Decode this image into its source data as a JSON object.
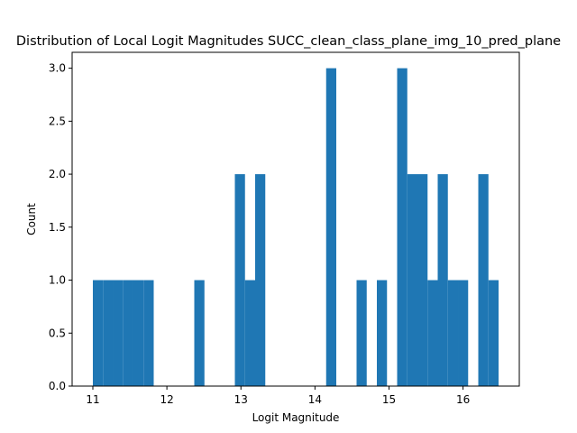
{
  "chart_data": {
    "type": "bar",
    "title": "Distribution of Local Logit Magnitudes SUCC_clean_class_plane_img_10_pred_plane",
    "xlabel": "Logit Magnitude",
    "ylabel": "Count",
    "xlim": [
      10.72,
      16.76
    ],
    "ylim": [
      0,
      3.15
    ],
    "grid": false,
    "color": "#1f77b4",
    "bin_width": 0.137,
    "bins": [
      {
        "x0": 11.0,
        "count": 1
      },
      {
        "x0": 11.137,
        "count": 1
      },
      {
        "x0": 11.274,
        "count": 1
      },
      {
        "x0": 11.411,
        "count": 1
      },
      {
        "x0": 11.548,
        "count": 1
      },
      {
        "x0": 11.685,
        "count": 1
      },
      {
        "x0": 12.37,
        "count": 1
      },
      {
        "x0": 12.918,
        "count": 2
      },
      {
        "x0": 13.055,
        "count": 1
      },
      {
        "x0": 13.192,
        "count": 2
      },
      {
        "x0": 14.151,
        "count": 3
      },
      {
        "x0": 14.562,
        "count": 1
      },
      {
        "x0": 14.836,
        "count": 1
      },
      {
        "x0": 15.11,
        "count": 3
      },
      {
        "x0": 15.247,
        "count": 2
      },
      {
        "x0": 15.384,
        "count": 2
      },
      {
        "x0": 15.521,
        "count": 1
      },
      {
        "x0": 15.658,
        "count": 2
      },
      {
        "x0": 15.795,
        "count": 1
      },
      {
        "x0": 15.932,
        "count": 1
      },
      {
        "x0": 16.206,
        "count": 2
      },
      {
        "x0": 16.343,
        "count": 1
      }
    ],
    "xticks": [
      11,
      12,
      13,
      14,
      15,
      16
    ],
    "xtick_labels": [
      "11",
      "12",
      "13",
      "14",
      "15",
      "16"
    ],
    "yticks": [
      0.0,
      0.5,
      1.0,
      1.5,
      2.0,
      2.5,
      3.0
    ],
    "ytick_labels": [
      "0.0",
      "0.5",
      "1.0",
      "1.5",
      "2.0",
      "2.5",
      "3.0"
    ]
  }
}
